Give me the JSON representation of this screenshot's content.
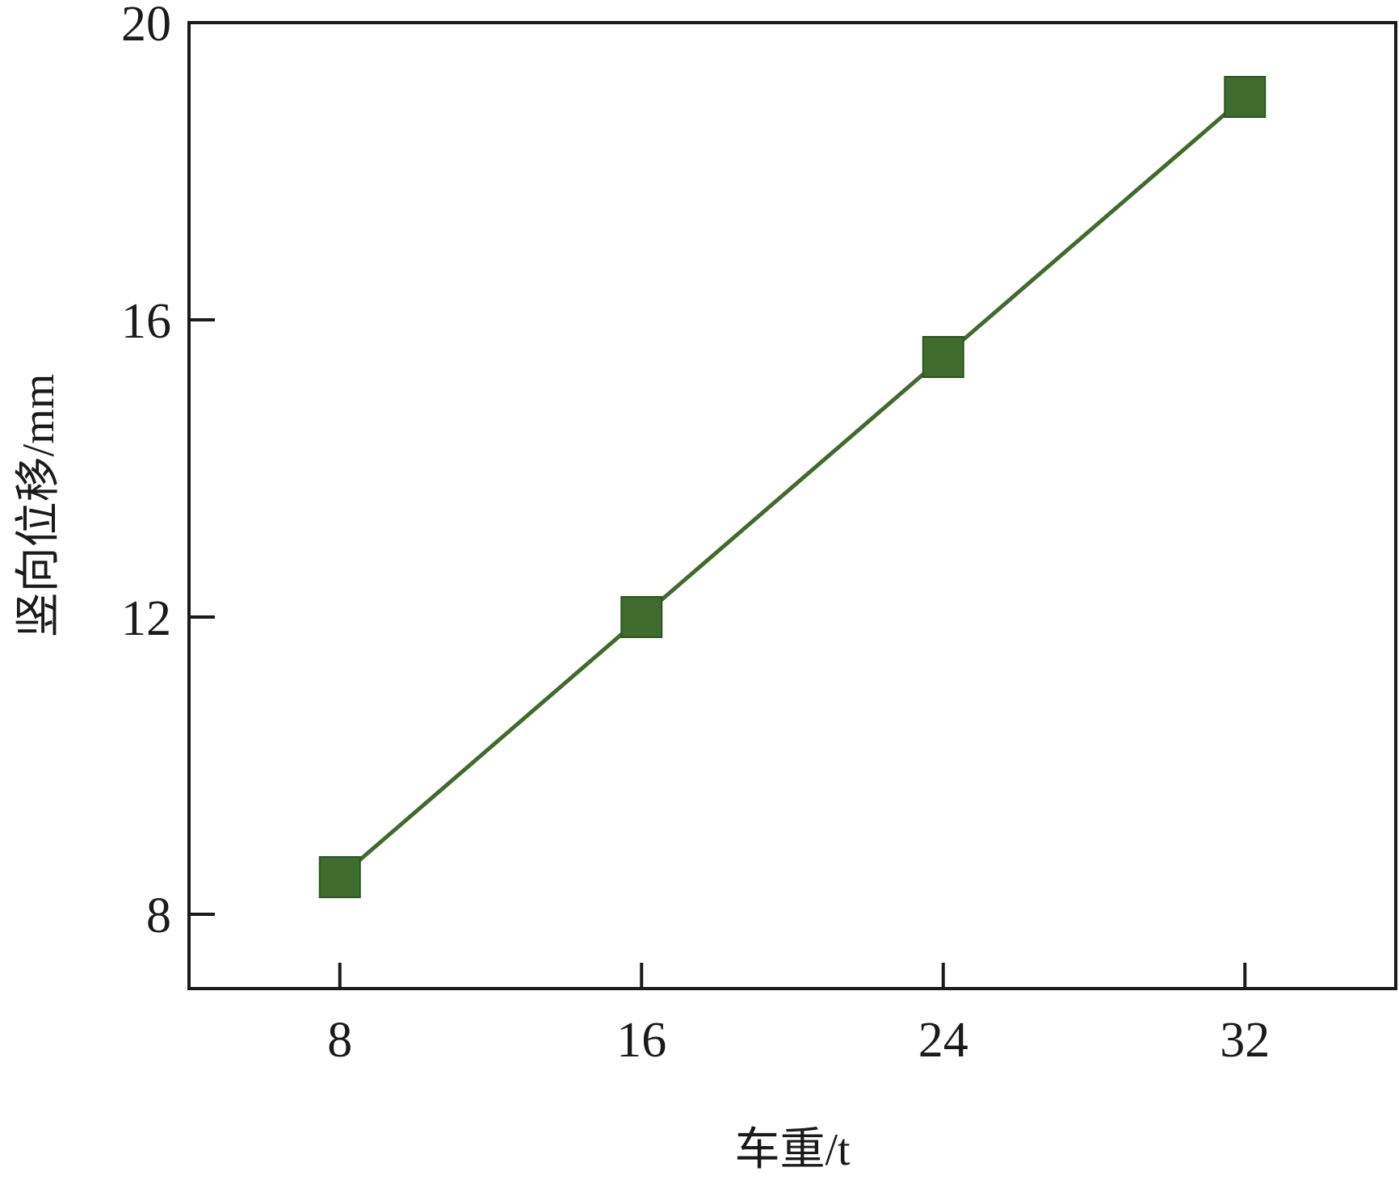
{
  "chart_data": {
    "type": "line",
    "title": "",
    "xlabel": "车重/t",
    "ylabel": "竖向位移/mm",
    "x_ticks": [
      8,
      16,
      24,
      32
    ],
    "y_ticks": [
      8,
      12,
      16,
      20
    ],
    "xlim": [
      4,
      36
    ],
    "ylim": [
      7,
      20
    ],
    "grid": false,
    "legend": "none",
    "series": [
      {
        "x": [
          8,
          16,
          24,
          32
        ],
        "y": [
          8.5,
          12.0,
          15.5,
          19.0
        ],
        "color": "#3f6b2c",
        "marker": "square"
      }
    ]
  }
}
